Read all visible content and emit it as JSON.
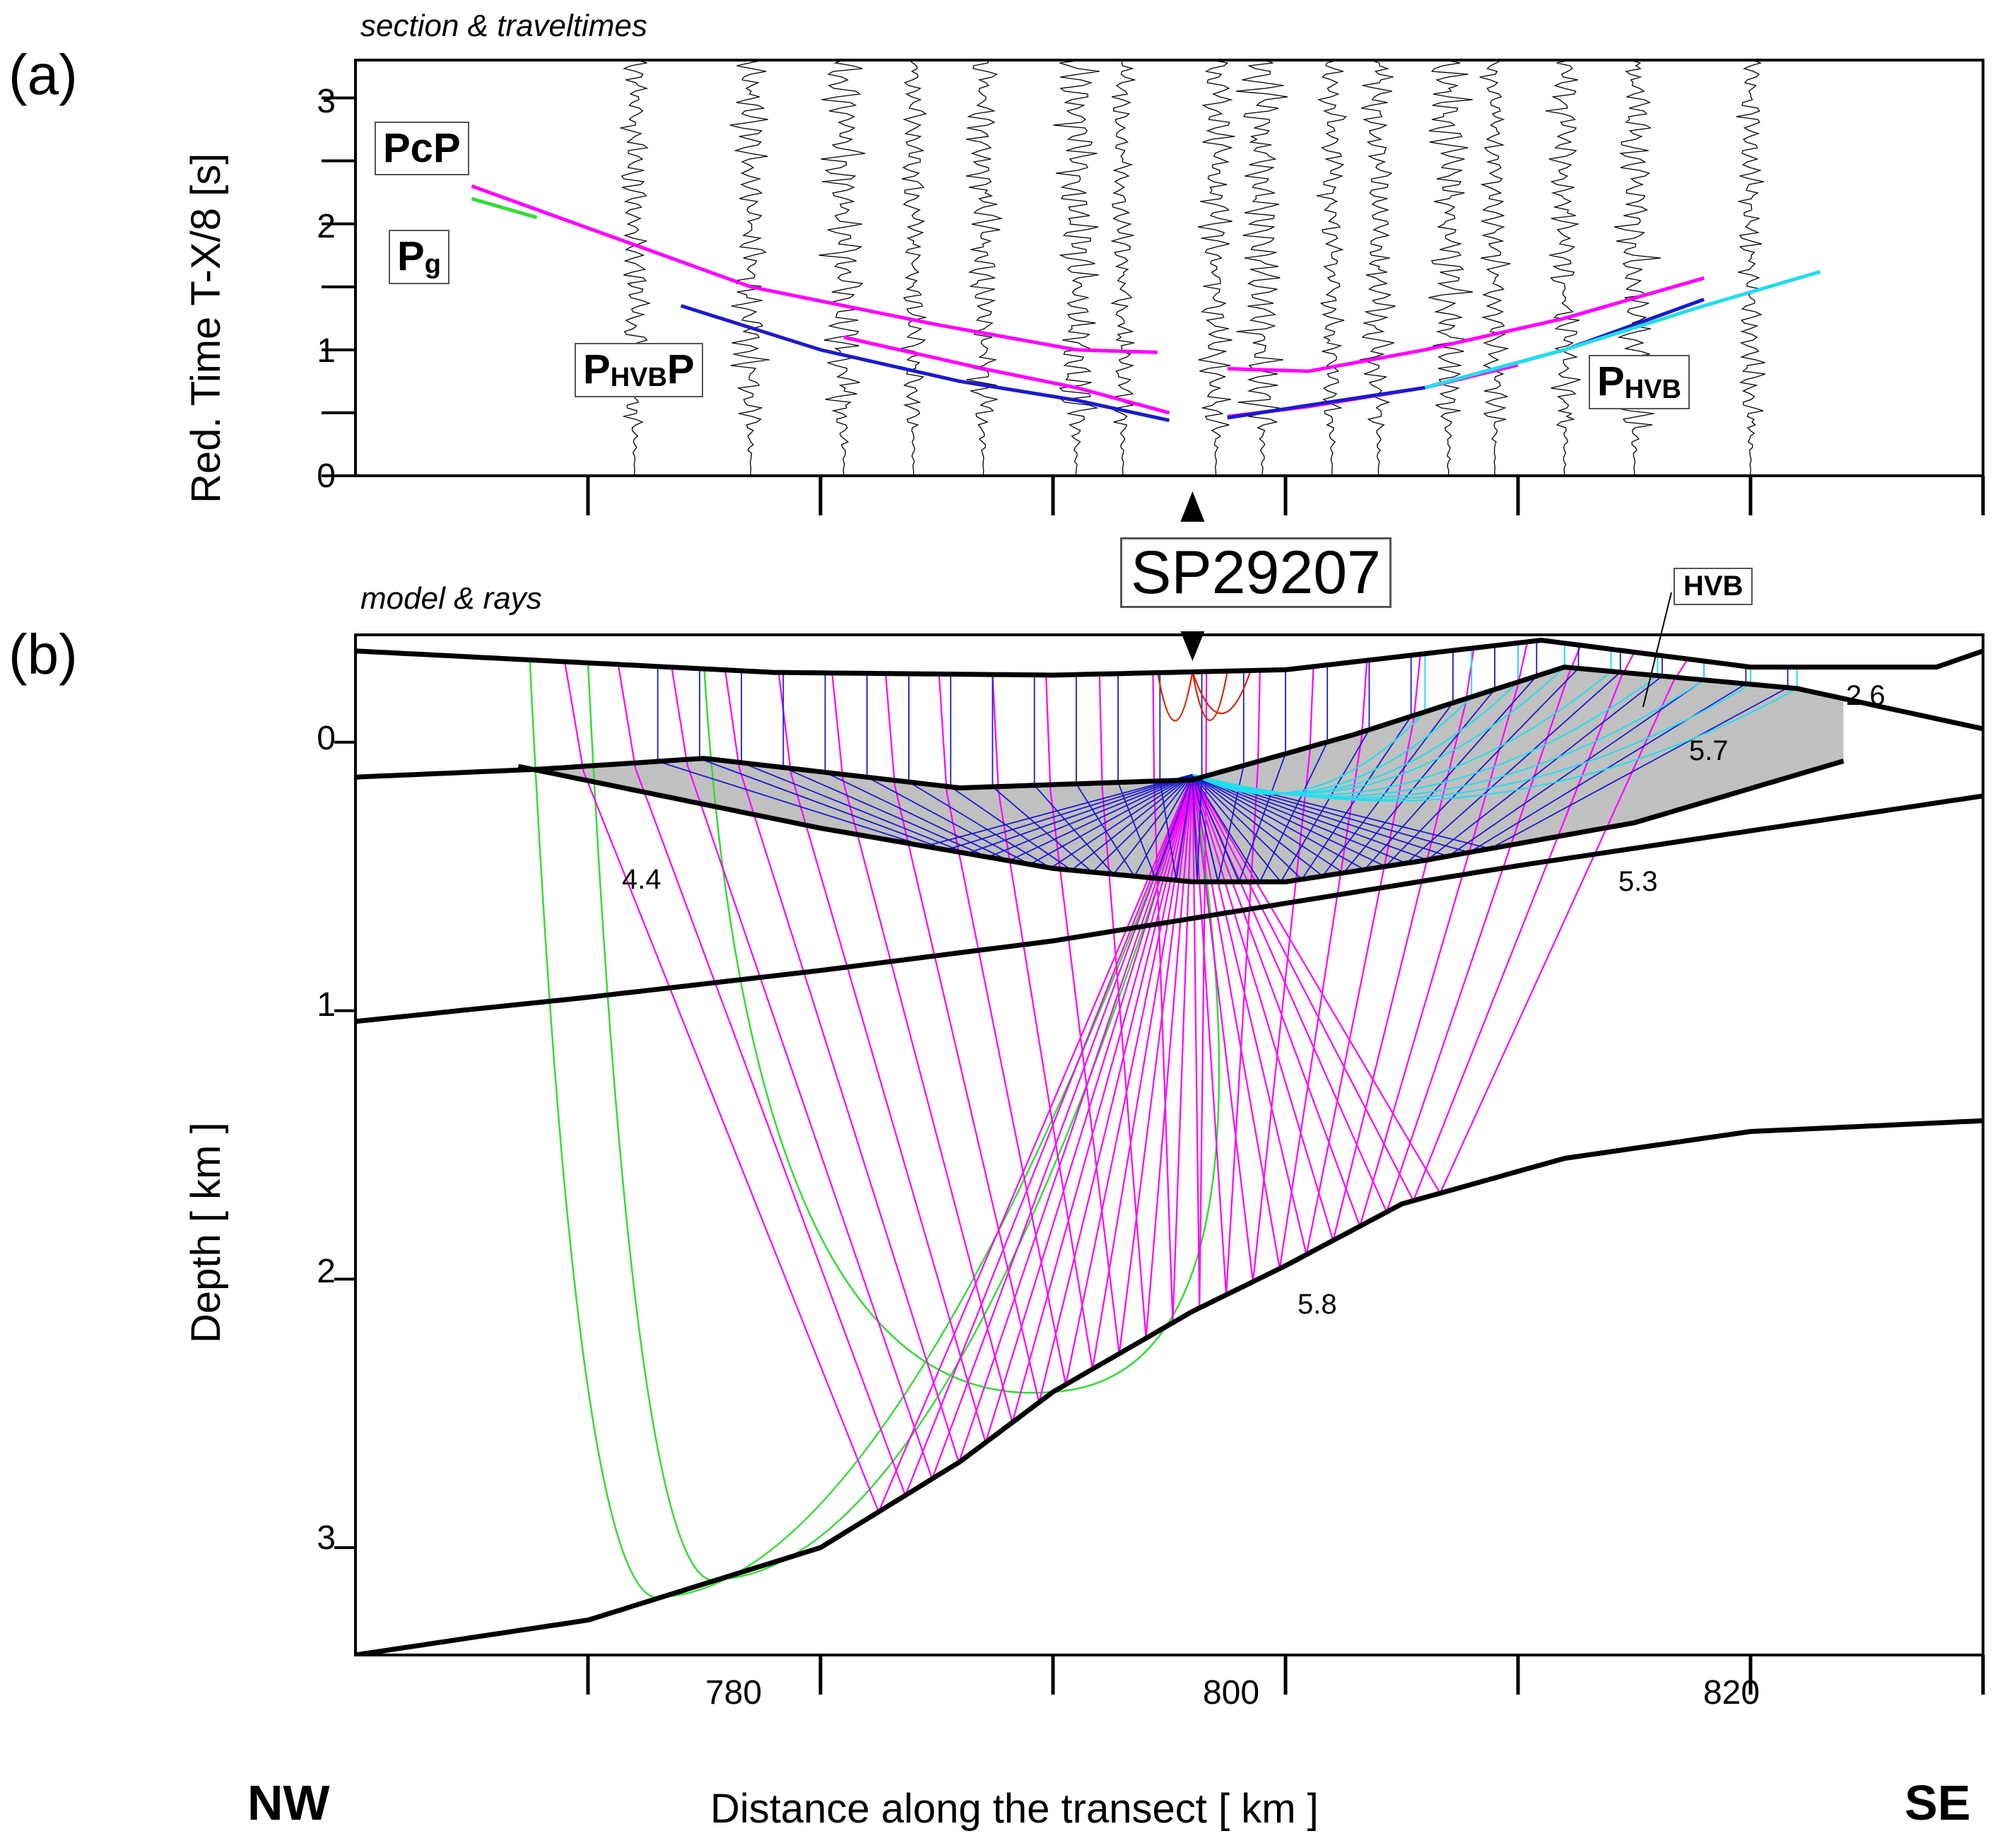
{
  "panel_a": {
    "label": "(a)",
    "subtitle": "section & traveltimes",
    "ylabel": "Red. Time  T-X/8 [s]",
    "yticks": [
      "0",
      "1",
      "2",
      "3"
    ],
    "phase_labels": {
      "pcp": "PcP",
      "pg_main": "P",
      "pg_sub": "g",
      "phvbp_main1": "P",
      "phvbp_sub": "HVB",
      "phvbp_main2": "P",
      "phvb_main": "P",
      "phvb_sub": "HVB"
    }
  },
  "shotpoint": "SP29207",
  "panel_b": {
    "label": "(b)",
    "subtitle": "model & rays",
    "ylabel": "Depth  [ km ]",
    "yticks": [
      "0",
      "1",
      "2",
      "3"
    ],
    "body_label": "HVB",
    "velocities": [
      "2.6",
      "5.7",
      "4.4",
      "5.3",
      "5.8"
    ]
  },
  "xaxis": {
    "label": "Distance along the transect   [ km ]",
    "ticks": [
      "780",
      "800",
      "820"
    ],
    "left_dir": "NW",
    "right_dir": "SE"
  },
  "colors": {
    "pcp": "#ff00ff",
    "pg": "#33dd33",
    "phvbp": "#1a1acc",
    "phvb": "#22ddee",
    "direct": "#dd2200",
    "hvb_fill": "#c0c0c0"
  },
  "chart_data": [
    {
      "type": "line",
      "title": "section & traveltimes",
      "xlabel": "Distance along the transect [ km ]",
      "ylabel": "Red. Time T-X/8 [s]",
      "xlim": [
        760,
        830
      ],
      "ylim": [
        0,
        3.3
      ],
      "shot_x": 796,
      "series": [
        {
          "name": "PcP",
          "color": "#ff00ff",
          "x": [
            765,
            777,
            785,
            791,
            794.5
          ],
          "y": [
            2.3,
            1.5,
            1.2,
            1.0,
            0.98
          ]
        },
        {
          "name": "PcP",
          "color": "#ff00ff",
          "x": [
            781,
            787,
            791,
            795
          ],
          "y": [
            1.1,
            0.85,
            0.7,
            0.5
          ]
        },
        {
          "name": "PcP",
          "color": "#ff00ff",
          "x": [
            797.5,
            801,
            806,
            812,
            818
          ],
          "y": [
            0.85,
            0.83,
            1.0,
            1.25,
            1.57
          ]
        },
        {
          "name": "PcP",
          "color": "#ff00ff",
          "x": [
            797.5,
            801,
            806,
            810
          ],
          "y": [
            0.47,
            0.55,
            0.7,
            0.88
          ]
        },
        {
          "name": "Pg",
          "color": "#33dd33",
          "x": [
            765,
            767.8
          ],
          "y": [
            2.2,
            2.05
          ]
        },
        {
          "name": "PHVBP",
          "color": "#1a1acc",
          "x": [
            774,
            780,
            786,
            791,
            795
          ],
          "y": [
            1.35,
            1.0,
            0.75,
            0.6,
            0.44
          ]
        },
        {
          "name": "PHVBP",
          "color": "#1a1acc",
          "x": [
            797.5,
            801,
            806,
            812,
            818
          ],
          "y": [
            0.46,
            0.56,
            0.7,
            1.0,
            1.4
          ]
        },
        {
          "name": "PHVB",
          "color": "#22ddee",
          "x": [
            806,
            812,
            818,
            823
          ],
          "y": [
            0.7,
            1.0,
            1.35,
            1.62
          ]
        }
      ],
      "trace_x": [
        772,
        777,
        781,
        784,
        787,
        791,
        793,
        797,
        799,
        802,
        804,
        807,
        809,
        812,
        815,
        820
      ]
    },
    {
      "type": "line",
      "title": "model & rays",
      "xlabel": "Distance along the transect [ km ]",
      "ylabel": "Depth [ km ]",
      "xlim": [
        760,
        830
      ],
      "ylim": [
        3.4,
        -0.4
      ],
      "interfaces": [
        {
          "x": [
            760,
            769,
            778,
            790,
            800,
            806,
            811,
            820,
            828,
            830
          ],
          "y": [
            -0.34,
            -0.3,
            -0.26,
            -0.25,
            -0.27,
            -0.33,
            -0.38,
            -0.28,
            -0.28,
            -0.34
          ]
        },
        {
          "x": [
            760,
            768,
            775,
            786,
            796,
            803,
            812,
            822,
            830
          ],
          "y": [
            0.13,
            0.1,
            0.06,
            0.17,
            0.14,
            -0.03,
            -0.28,
            -0.2,
            -0.05
          ]
        },
        {
          "x": [
            767,
            780,
            790,
            796,
            800,
            806,
            815,
            824
          ],
          "y": [
            0.09,
            0.32,
            0.47,
            0.52,
            0.52,
            0.44,
            0.3,
            0.07
          ]
        },
        {
          "x": [
            760,
            770,
            780,
            790,
            800,
            810,
            820,
            830
          ],
          "y": [
            1.04,
            0.95,
            0.85,
            0.74,
            0.6,
            0.46,
            0.33,
            0.2
          ]
        },
        {
          "x": [
            760,
            770,
            780,
            786,
            790,
            796,
            800,
            805,
            812,
            820,
            830
          ],
          "y": [
            3.4,
            3.27,
            3.0,
            2.68,
            2.42,
            2.12,
            1.95,
            1.72,
            1.55,
            1.45,
            1.41
          ]
        }
      ]
    }
  ]
}
